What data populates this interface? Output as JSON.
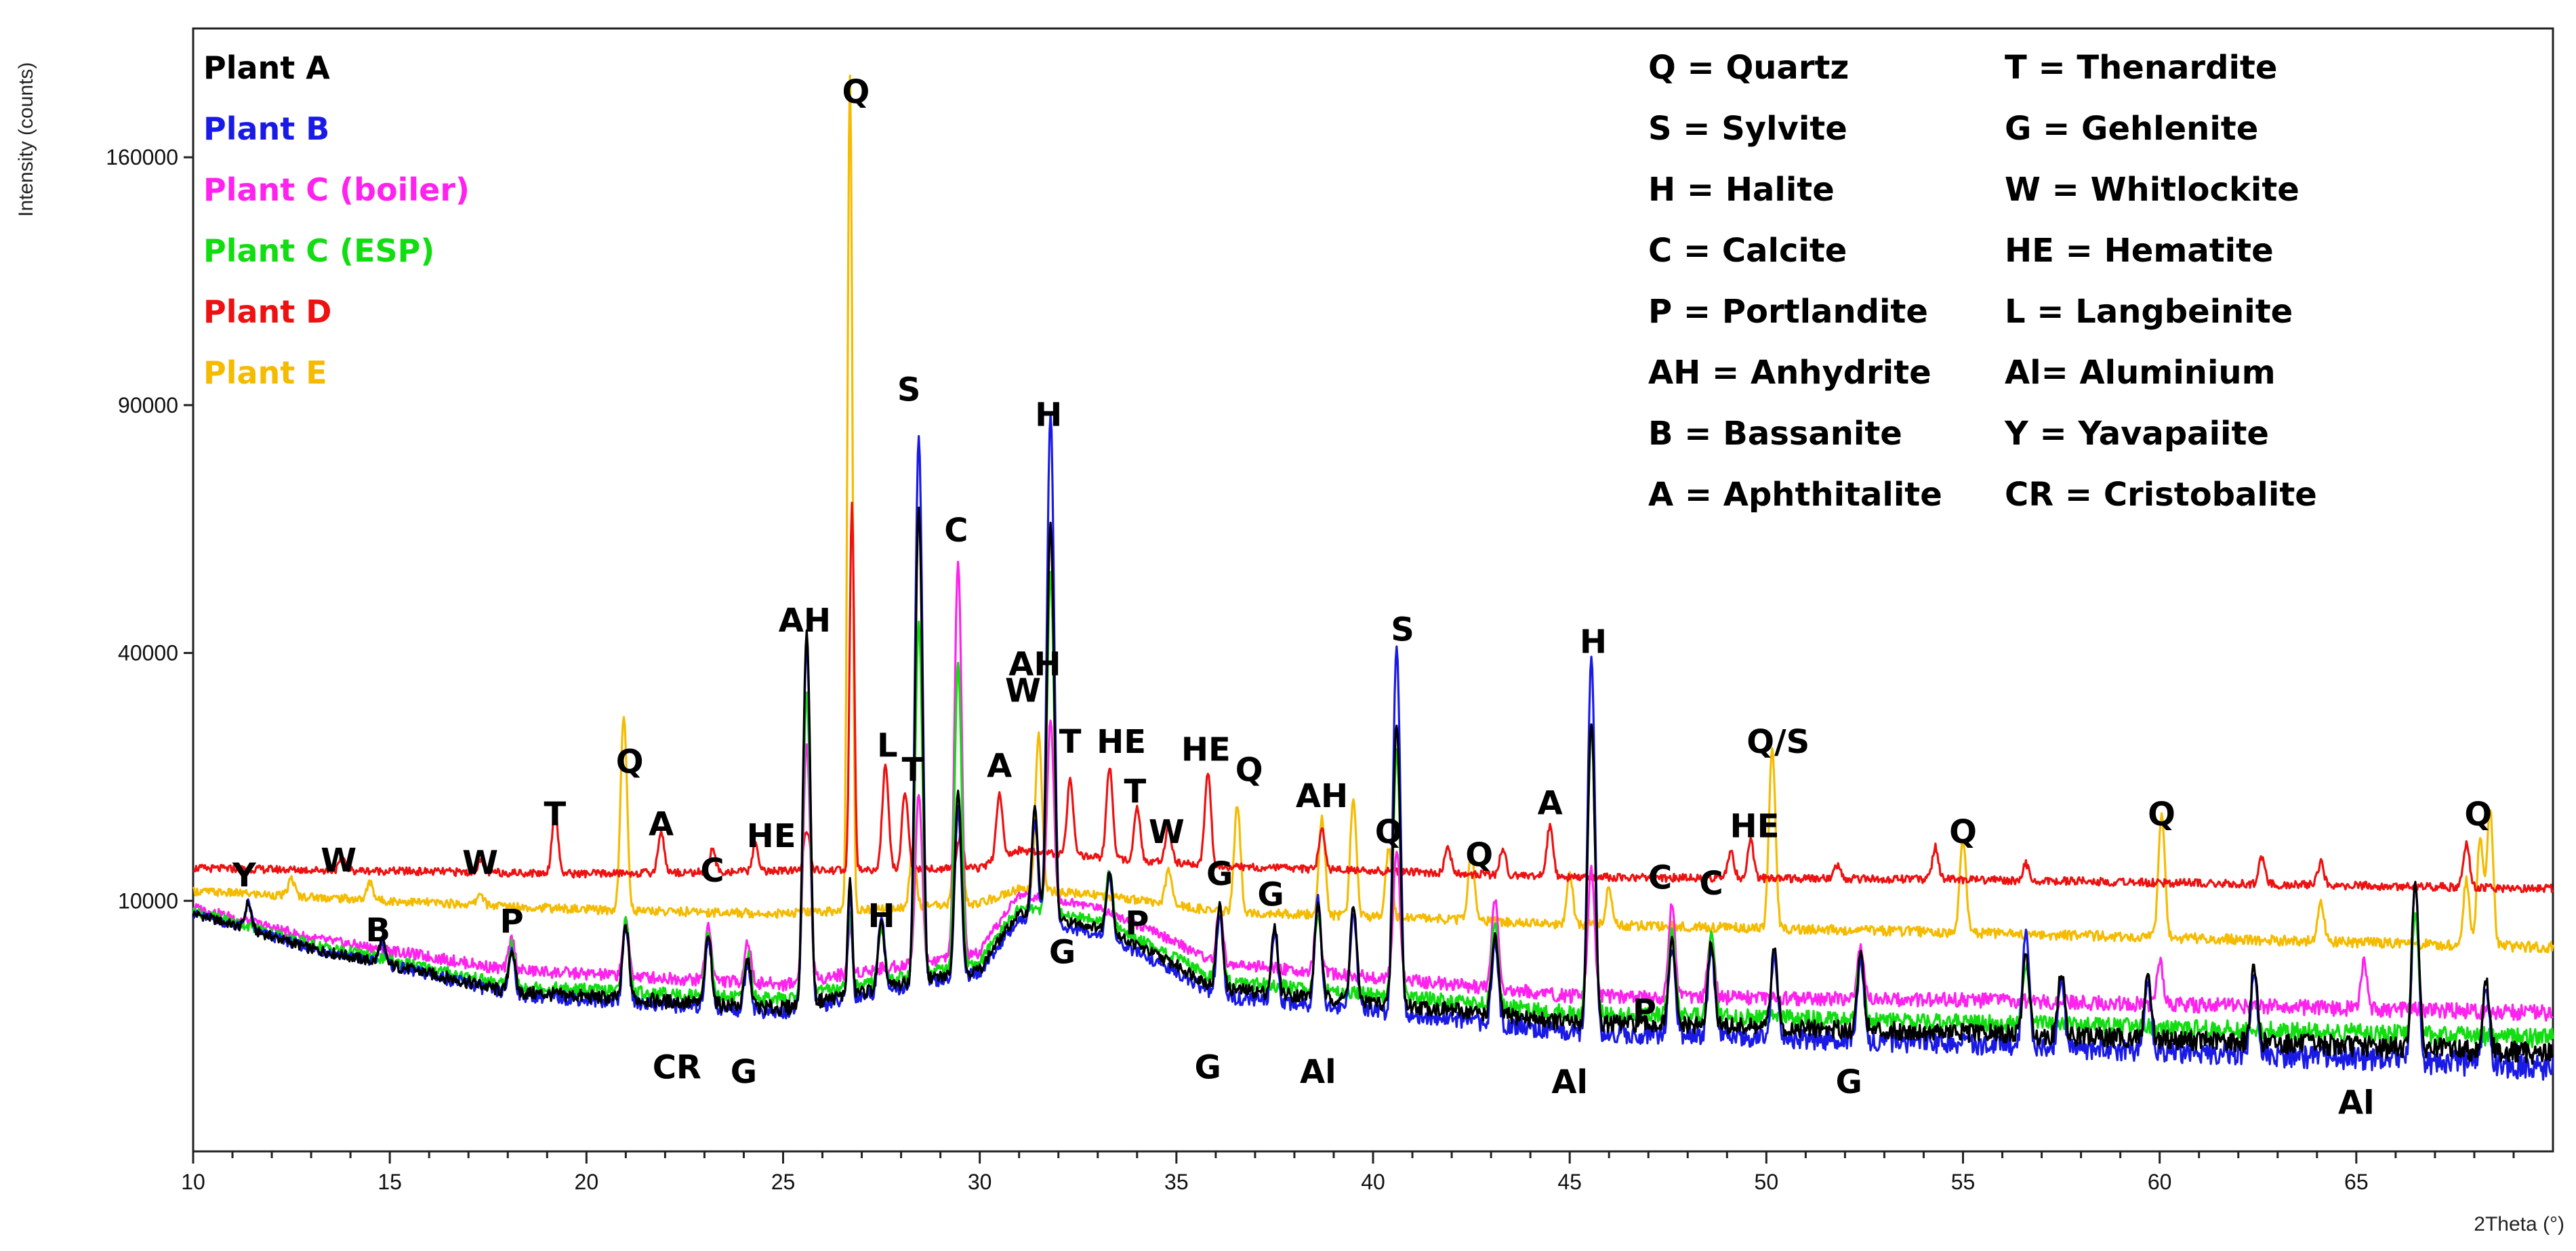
{
  "chart_data": {
    "type": "line",
    "title": "",
    "xlabel": "2Theta (°)",
    "ylabel": "Intensity (counts)",
    "xlim": [
      10,
      70
    ],
    "ylim": [
      0,
      195000
    ],
    "yscale": "sqrt",
    "x_ticks": [
      10,
      15,
      20,
      25,
      30,
      35,
      40,
      45,
      50,
      55,
      60,
      65
    ],
    "x_tick_labels": [
      "10",
      "15",
      "20",
      "25",
      "30",
      "35",
      "40",
      "45",
      "50",
      "55",
      "60",
      "65"
    ],
    "y_ticks": [
      10000,
      40000,
      90000,
      160000
    ],
    "y_tick_labels": [
      "10000",
      "40000",
      "90000",
      "160000"
    ],
    "legend_position": "top-left",
    "series": [
      {
        "name": "Plant A",
        "color": "#000000",
        "baseline": [
          [
            10,
            9000
          ],
          [
            13,
            6500
          ],
          [
            18,
            4000
          ],
          [
            25,
            3200
          ],
          [
            30,
            5200
          ],
          [
            31,
            9000
          ],
          [
            33,
            8000
          ],
          [
            36,
            4200
          ],
          [
            45,
            2600
          ],
          [
            55,
            2200
          ],
          [
            70,
            1500
          ]
        ],
        "peaks": [
          [
            11.4,
            2000
          ],
          [
            14.8,
            1500
          ],
          [
            18.1,
            2500
          ],
          [
            21.0,
            4500
          ],
          [
            23.1,
            4000
          ],
          [
            24.1,
            2500
          ],
          [
            25.6,
            40000
          ],
          [
            26.7,
            8000
          ],
          [
            27.5,
            4000
          ],
          [
            28.45,
            62000
          ],
          [
            29.45,
            16000
          ],
          [
            31.4,
            10000
          ],
          [
            31.8,
            55000
          ],
          [
            33.3,
            5000
          ],
          [
            36.1,
            5500
          ],
          [
            37.5,
            4000
          ],
          [
            38.6,
            6000
          ],
          [
            39.5,
            6000
          ],
          [
            40.6,
            26000
          ],
          [
            43.1,
            4500
          ],
          [
            45.55,
            27000
          ],
          [
            47.6,
            4500
          ],
          [
            48.6,
            4500
          ],
          [
            50.2,
            4000
          ],
          [
            52.4,
            4000
          ],
          [
            56.6,
            4000
          ],
          [
            57.5,
            3000
          ],
          [
            59.7,
            3000
          ],
          [
            62.4,
            3500
          ],
          [
            66.5,
            10000
          ],
          [
            68.3,
            3000
          ]
        ]
      },
      {
        "name": "Plant B",
        "color": "#1a1ae6",
        "baseline": [
          [
            10,
            9000
          ],
          [
            13,
            6500
          ],
          [
            18,
            3900
          ],
          [
            25,
            3000
          ],
          [
            30,
            5000
          ],
          [
            31,
            8500
          ],
          [
            33,
            7500
          ],
          [
            36,
            3800
          ],
          [
            45,
            2200
          ],
          [
            55,
            1800
          ],
          [
            70,
            1100
          ]
        ],
        "peaks": [
          [
            11.4,
            2000
          ],
          [
            14.8,
            1500
          ],
          [
            18.1,
            2500
          ],
          [
            21.0,
            4500
          ],
          [
            23.1,
            4000
          ],
          [
            24.1,
            2500
          ],
          [
            25.6,
            38000
          ],
          [
            26.7,
            7000
          ],
          [
            27.5,
            5000
          ],
          [
            28.45,
            78000
          ],
          [
            29.45,
            14000
          ],
          [
            31.4,
            9000
          ],
          [
            31.8,
            80000
          ],
          [
            33.3,
            5000
          ],
          [
            36.1,
            5000
          ],
          [
            37.5,
            4000
          ],
          [
            38.6,
            7000
          ],
          [
            39.5,
            6000
          ],
          [
            40.6,
            38000
          ],
          [
            43.1,
            4500
          ],
          [
            45.55,
            37000
          ],
          [
            47.6,
            4500
          ],
          [
            48.6,
            4500
          ],
          [
            50.2,
            4000
          ],
          [
            52.4,
            4000
          ],
          [
            56.6,
            6000
          ],
          [
            57.5,
            3000
          ],
          [
            59.7,
            3000
          ],
          [
            62.4,
            3500
          ],
          [
            66.5,
            10000
          ],
          [
            68.3,
            3000
          ]
        ]
      },
      {
        "name": "Plant C (boiler)",
        "color": "#ff22ee",
        "baseline": [
          [
            10,
            9500
          ],
          [
            13,
            7200
          ],
          [
            18,
            5200
          ],
          [
            25,
            4400
          ],
          [
            30,
            6200
          ],
          [
            31,
            10500
          ],
          [
            33,
            9500
          ],
          [
            36,
            5600
          ],
          [
            45,
            3800
          ],
          [
            55,
            3600
          ],
          [
            70,
            3000
          ]
        ],
        "peaks": [
          [
            18.1,
            2000
          ],
          [
            21.0,
            3500
          ],
          [
            23.1,
            3500
          ],
          [
            24.1,
            2500
          ],
          [
            25.6,
            22000
          ],
          [
            26.7,
            3000
          ],
          [
            28.45,
            15000
          ],
          [
            29.45,
            50000
          ],
          [
            31.8,
            20000
          ],
          [
            36.1,
            4000
          ],
          [
            38.6,
            4000
          ],
          [
            40.6,
            10000
          ],
          [
            43.1,
            6000
          ],
          [
            45.55,
            9000
          ],
          [
            47.6,
            6000
          ],
          [
            48.6,
            4000
          ],
          [
            52.4,
            3000
          ],
          [
            60.0,
            2500
          ],
          [
            65.2,
            2500
          ]
        ]
      },
      {
        "name": "Plant C (ESP)",
        "color": "#11dd11",
        "baseline": [
          [
            10,
            9200
          ],
          [
            13,
            6800
          ],
          [
            18,
            4300
          ],
          [
            25,
            3600
          ],
          [
            30,
            5600
          ],
          [
            31,
            9500
          ],
          [
            33,
            8500
          ],
          [
            36,
            4600
          ],
          [
            45,
            3000
          ],
          [
            55,
            2600
          ],
          [
            70,
            2000
          ]
        ],
        "peaks": [
          [
            18.1,
            2500
          ],
          [
            21.0,
            4500
          ],
          [
            23.1,
            4000
          ],
          [
            24.1,
            2500
          ],
          [
            25.6,
            30000
          ],
          [
            26.7,
            5000
          ],
          [
            27.5,
            3500
          ],
          [
            28.45,
            40000
          ],
          [
            29.45,
            33000
          ],
          [
            31.8,
            45000
          ],
          [
            33.3,
            4500
          ],
          [
            36.1,
            4500
          ],
          [
            38.6,
            5000
          ],
          [
            40.6,
            22000
          ],
          [
            43.1,
            5000
          ],
          [
            45.55,
            26000
          ],
          [
            47.6,
            5000
          ],
          [
            48.6,
            4500
          ],
          [
            52.4,
            3500
          ],
          [
            56.6,
            3000
          ],
          [
            66.5,
            7000
          ]
        ]
      },
      {
        "name": "Plant D",
        "color": "#ee1111",
        "baseline": [
          [
            10,
            12800
          ],
          [
            20,
            12300
          ],
          [
            30,
            12800
          ],
          [
            31,
            14500
          ],
          [
            33,
            13800
          ],
          [
            36,
            13000
          ],
          [
            45,
            12000
          ],
          [
            55,
            11800
          ],
          [
            70,
            11000
          ]
        ],
        "peaks": [
          [
            13.8,
            1200
          ],
          [
            17.3,
            1000
          ],
          [
            19.2,
            6000
          ],
          [
            21.9,
            4000
          ],
          [
            23.2,
            2000
          ],
          [
            24.3,
            2500
          ],
          [
            25.6,
            4000
          ],
          [
            26.75,
            55000
          ],
          [
            27.6,
            11000
          ],
          [
            28.1,
            8000
          ],
          [
            29.5,
            3000
          ],
          [
            30.5,
            7000
          ],
          [
            32.3,
            8000
          ],
          [
            33.3,
            10000
          ],
          [
            34.0,
            5500
          ],
          [
            34.8,
            3500
          ],
          [
            35.8,
            10000
          ],
          [
            38.7,
            4000
          ],
          [
            41.9,
            2500
          ],
          [
            43.3,
            2500
          ],
          [
            44.5,
            5000
          ],
          [
            49.1,
            2500
          ],
          [
            49.6,
            3500
          ],
          [
            51.8,
            1200
          ],
          [
            54.3,
            3000
          ],
          [
            56.6,
            1500
          ],
          [
            62.6,
            2500
          ],
          [
            64.1,
            2000
          ],
          [
            67.8,
            4000
          ]
        ]
      },
      {
        "name": "Plant E",
        "color": "#f5bb00",
        "baseline": [
          [
            10,
            10800
          ],
          [
            15,
            10000
          ],
          [
            20,
            9300
          ],
          [
            25,
            9000
          ],
          [
            30,
            9800
          ],
          [
            31,
            11000
          ],
          [
            33,
            10500
          ],
          [
            36,
            9200
          ],
          [
            45,
            8200
          ],
          [
            55,
            7600
          ],
          [
            70,
            6600
          ]
        ],
        "peaks": [
          [
            12.5,
            1500
          ],
          [
            14.5,
            1500
          ],
          [
            17.3,
            1000
          ],
          [
            20.95,
            21000
          ],
          [
            26.7,
            178000
          ],
          [
            28.3,
            5000
          ],
          [
            29.45,
            28000
          ],
          [
            31.5,
            17000
          ],
          [
            34.8,
            3000
          ],
          [
            36.55,
            10000
          ],
          [
            38.7,
            9000
          ],
          [
            39.5,
            11000
          ],
          [
            40.4,
            6000
          ],
          [
            42.5,
            6000
          ],
          [
            45.0,
            4000
          ],
          [
            46.0,
            3000
          ],
          [
            50.15,
            18000
          ],
          [
            55.0,
            8000
          ],
          [
            60.05,
            11000
          ],
          [
            64.1,
            3000
          ],
          [
            67.8,
            5000
          ],
          [
            68.15,
            9000
          ],
          [
            68.4,
            12000
          ]
        ]
      }
    ],
    "annotations": [
      {
        "text": "Q",
        "x": 26.85,
        "y": 178000
      },
      {
        "text": "S",
        "x": 28.2,
        "y": 91000
      },
      {
        "text": "H",
        "x": 31.75,
        "y": 85000
      },
      {
        "text": "C",
        "x": 29.4,
        "y": 60000
      },
      {
        "text": "AH",
        "x": 25.55,
        "y": 43500
      },
      {
        "text": "AH",
        "x": 31.4,
        "y": 36500
      },
      {
        "text": "W",
        "x": 31.1,
        "y": 32500
      },
      {
        "text": "L",
        "x": 27.65,
        "y": 25000
      },
      {
        "text": "T",
        "x": 28.3,
        "y": 22000
      },
      {
        "text": "T",
        "x": 32.3,
        "y": 25500
      },
      {
        "text": "HE",
        "x": 33.6,
        "y": 25500
      },
      {
        "text": "A",
        "x": 30.5,
        "y": 22500
      },
      {
        "text": "T",
        "x": 33.95,
        "y": 19500
      },
      {
        "text": "W",
        "x": 34.75,
        "y": 15200
      },
      {
        "text": "HE",
        "x": 35.75,
        "y": 24500
      },
      {
        "text": "Q",
        "x": 36.85,
        "y": 22000
      },
      {
        "text": "AH",
        "x": 38.7,
        "y": 19000
      },
      {
        "text": "Q",
        "x": 40.4,
        "y": 15200
      },
      {
        "text": "S",
        "x": 40.75,
        "y": 42000
      },
      {
        "text": "H",
        "x": 45.6,
        "y": 40000
      },
      {
        "text": "A",
        "x": 44.5,
        "y": 18200
      },
      {
        "text": "Q",
        "x": 42.7,
        "y": 13000
      },
      {
        "text": "Q/S",
        "x": 50.3,
        "y": 25500
      },
      {
        "text": "HE",
        "x": 49.7,
        "y": 15800
      },
      {
        "text": "C",
        "x": 47.3,
        "y": 11000
      },
      {
        "text": "C",
        "x": 48.6,
        "y": 10500
      },
      {
        "text": "Q",
        "x": 55.0,
        "y": 15200
      },
      {
        "text": "Q",
        "x": 60.05,
        "y": 17000
      },
      {
        "text": "Q",
        "x": 68.1,
        "y": 17000
      },
      {
        "text": "Y",
        "x": 11.3,
        "y": 11200
      },
      {
        "text": "W",
        "x": 13.7,
        "y": 12500
      },
      {
        "text": "W",
        "x": 17.3,
        "y": 12300
      },
      {
        "text": "T",
        "x": 19.2,
        "y": 17000
      },
      {
        "text": "Q",
        "x": 21.1,
        "y": 23000
      },
      {
        "text": "A",
        "x": 21.9,
        "y": 16000
      },
      {
        "text": "C",
        "x": 23.2,
        "y": 11600
      },
      {
        "text": "HE",
        "x": 24.7,
        "y": 14800
      },
      {
        "text": "B",
        "x": 14.7,
        "y": 7000
      },
      {
        "text": "P",
        "x": 18.1,
        "y": 7600
      },
      {
        "text": "CR",
        "x": 22.3,
        "y": 800
      },
      {
        "text": "G",
        "x": 24.0,
        "y": 700
      },
      {
        "text": "H",
        "x": 27.5,
        "y": 8000
      },
      {
        "text": "G",
        "x": 32.1,
        "y": 5600
      },
      {
        "text": "P",
        "x": 34.0,
        "y": 7500
      },
      {
        "text": "G",
        "x": 36.1,
        "y": 11300
      },
      {
        "text": "G",
        "x": 37.4,
        "y": 9600
      },
      {
        "text": "G",
        "x": 35.8,
        "y": 800
      },
      {
        "text": "Al",
        "x": 38.6,
        "y": 700
      },
      {
        "text": "Al",
        "x": 45.0,
        "y": 500
      },
      {
        "text": "P",
        "x": 46.9,
        "y": 2600
      },
      {
        "text": "G",
        "x": 52.1,
        "y": 500
      },
      {
        "text": "Al",
        "x": 65.0,
        "y": 200
      }
    ],
    "mineral_key": [
      "Q = Quartz",
      "S = Sylvite",
      "H = Halite",
      "C = Calcite",
      "P = Portlandite",
      "AH = Anhydrite",
      "B = Bassanite",
      "A = Aphthitalite",
      "T = Thenardite",
      "G = Gehlenite",
      "W = Whitlockite",
      "HE = Hematite",
      "L = Langbeinite",
      "Al= Aluminium",
      "Y = Yavapaiite",
      "CR = Cristobalite"
    ]
  }
}
